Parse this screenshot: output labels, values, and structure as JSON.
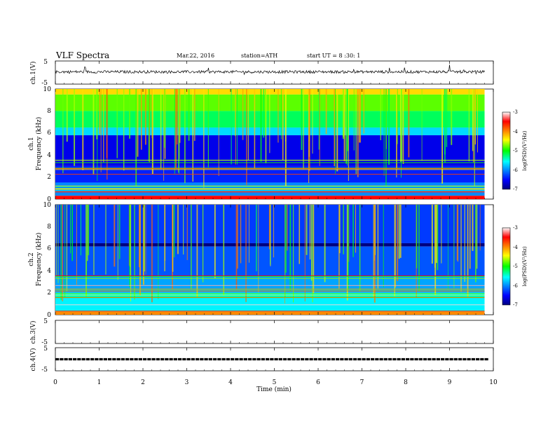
{
  "header": {
    "title": "VLF Spectra",
    "date": "Mar.22, 2016",
    "station": "station=ATH",
    "start_time": "start UT =  8 :30: 1"
  },
  "chart_data": [
    {
      "type": "line",
      "ylabel": "ch.1(V)",
      "ylim": [
        -5,
        5
      ],
      "ytick_labels": [
        "5",
        "-5"
      ],
      "xlim": [
        0,
        10
      ],
      "baseline_value": 0.3,
      "series": [
        {
          "values": [
            0.3,
            0.2,
            0.4,
            0.1,
            0.3,
            0.5,
            0.2,
            0.3,
            0.4,
            0.2,
            0.3
          ]
        }
      ]
    },
    {
      "type": "heatmap",
      "ylabel": "Frequency (kHz)",
      "panel_label": "ch.1",
      "ylim": [
        0,
        10
      ],
      "ytick_labels": [
        "0",
        "2",
        "4",
        "6",
        "8",
        "10"
      ],
      "xlim": [
        0,
        9.8
      ],
      "colorbar": {
        "label": "log(PSD)(V²/Hz)",
        "range": [
          -7,
          -3
        ],
        "tick_labels": [
          "-3",
          "-4",
          "-5",
          "-6",
          "-7"
        ]
      },
      "bands_log_psd": [
        {
          "from_khz": 9.5,
          "to_khz": 10,
          "value": -4.3
        },
        {
          "from_khz": 8,
          "to_khz": 9.5,
          "value": -4.8
        },
        {
          "from_khz": 6.5,
          "to_khz": 8,
          "value": -5.2
        },
        {
          "from_khz": 5.8,
          "to_khz": 6.5,
          "value": -5.7
        },
        {
          "from_khz": 3,
          "to_khz": 5.8,
          "value": -6.6
        },
        {
          "from_khz": 1.5,
          "to_khz": 3,
          "value": -6.4
        },
        {
          "from_khz": 0.3,
          "to_khz": 1.5,
          "value": -6.0
        },
        {
          "from_khz": 0,
          "to_khz": 0.3,
          "value": -3.5
        }
      ]
    },
    {
      "type": "heatmap",
      "ylabel": "Frequency (kHz)",
      "panel_label": "ch.2",
      "ylim": [
        0,
        10
      ],
      "ytick_labels": [
        "0",
        "2",
        "4",
        "6",
        "8",
        "10"
      ],
      "xlim": [
        0,
        9.8
      ],
      "colorbar": {
        "label": "log(PSD)(V²/Hz)",
        "range": [
          -7,
          -3
        ],
        "tick_labels": [
          "-3",
          "-4",
          "-5",
          "-6",
          "-7"
        ]
      },
      "bands_log_psd": [
        {
          "from_khz": 6.5,
          "to_khz": 10,
          "value": -6.3
        },
        {
          "from_khz": 6.2,
          "to_khz": 6.5,
          "value": -7.0
        },
        {
          "from_khz": 3.5,
          "to_khz": 6.2,
          "value": -6.2
        },
        {
          "from_khz": 2,
          "to_khz": 3.5,
          "value": -5.9
        },
        {
          "from_khz": 0.3,
          "to_khz": 2,
          "value": -5.6
        },
        {
          "from_khz": 0,
          "to_khz": 0.3,
          "value": -4.0
        }
      ]
    },
    {
      "type": "line",
      "ylabel": "ch.3(V)",
      "ylim": [
        -5,
        5
      ],
      "ytick_labels": [
        "5",
        "-5"
      ],
      "xlim": [
        0,
        10
      ],
      "series": []
    },
    {
      "type": "line",
      "ylabel": "ch.4(V)",
      "ylim": [
        -5,
        5
      ],
      "ytick_labels": [
        "5",
        "-5"
      ],
      "xlim": [
        0,
        10
      ],
      "baseline_value": 0.0,
      "series": [
        {
          "values": [
            0,
            0,
            0,
            0,
            0,
            0,
            0,
            0,
            0,
            0,
            0
          ]
        }
      ]
    }
  ],
  "xaxis": {
    "label": "Time (min)",
    "range": [
      0,
      10
    ],
    "tick_labels": [
      "0",
      "1",
      "2",
      "3",
      "4",
      "5",
      "6",
      "7",
      "8",
      "9",
      "10"
    ]
  }
}
